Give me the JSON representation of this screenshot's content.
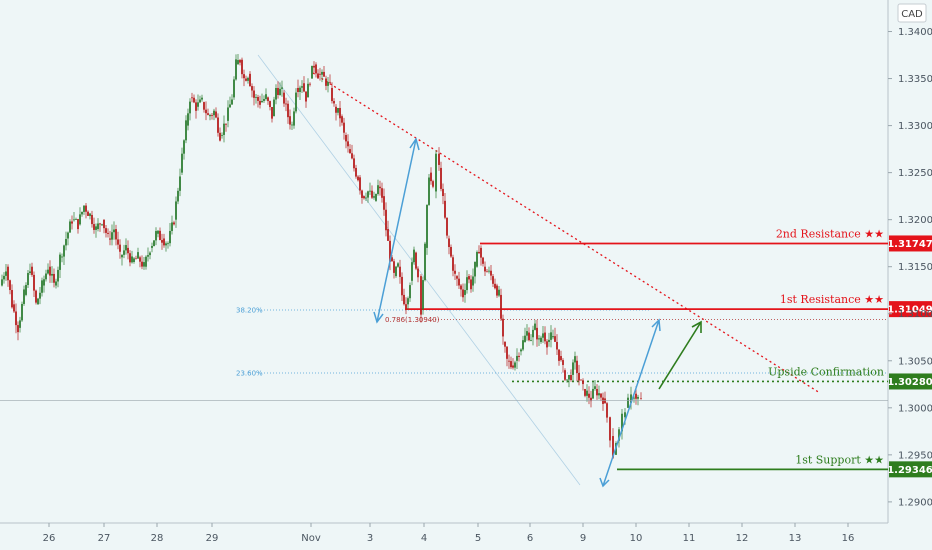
{
  "currency_label": "CAD",
  "colors": {
    "up": "#2e7d32",
    "down": "#b71c1c",
    "resistance": "#e4131a",
    "support": "#2e7d1e",
    "blue": "#4b9fd6"
  },
  "chart_data": {
    "type": "candlestick",
    "symbol_currency": "CAD",
    "x_ticks": [
      "26",
      "27",
      "28",
      "29",
      "Nov",
      "3",
      "4",
      "5",
      "6",
      "9",
      "10",
      "11",
      "12",
      "13",
      "16"
    ],
    "y_ticks": [
      "1.34000",
      "1.33500",
      "1.33000",
      "1.32500",
      "1.32000",
      "1.31500",
      "1.31000",
      "1.30500",
      "1.30000",
      "1.29500",
      "1.29000"
    ],
    "ylim": [
      1.2885,
      1.3425
    ],
    "close_path": [
      [
        0,
        1.313
      ],
      [
        6,
        1.315
      ],
      [
        12,
        1.311
      ],
      [
        18,
        1.3085
      ],
      [
        24,
        1.312
      ],
      [
        30,
        1.315
      ],
      [
        36,
        1.311
      ],
      [
        42,
        1.313
      ],
      [
        48,
        1.315
      ],
      [
        54,
        1.313
      ],
      [
        60,
        1.316
      ],
      [
        66,
        1.318
      ],
      [
        72,
        1.32
      ],
      [
        78,
        1.3195
      ],
      [
        84,
        1.3215
      ],
      [
        90,
        1.3205
      ],
      [
        96,
        1.319
      ],
      [
        102,
        1.32
      ],
      [
        108,
        1.318
      ],
      [
        114,
        1.319
      ],
      [
        120,
        1.316
      ],
      [
        126,
        1.317
      ],
      [
        132,
        1.3155
      ],
      [
        138,
        1.316
      ],
      [
        144,
        1.315
      ],
      [
        150,
        1.317
      ],
      [
        156,
        1.3185
      ],
      [
        162,
        1.318
      ],
      [
        168,
        1.3175
      ],
      [
        174,
        1.32
      ],
      [
        180,
        1.325
      ],
      [
        186,
        1.33
      ],
      [
        190,
        1.333
      ],
      [
        196,
        1.332
      ],
      [
        202,
        1.3325
      ],
      [
        208,
        1.331
      ],
      [
        214,
        1.3315
      ],
      [
        220,
        1.329
      ],
      [
        226,
        1.3305
      ],
      [
        232,
        1.333
      ],
      [
        236,
        1.3365
      ],
      [
        240,
        1.337
      ],
      [
        244,
        1.335
      ],
      [
        248,
        1.3355
      ],
      [
        254,
        1.333
      ],
      [
        260,
        1.3325
      ],
      [
        266,
        1.333
      ],
      [
        272,
        1.331
      ],
      [
        276,
        1.334
      ],
      [
        282,
        1.3335
      ],
      [
        288,
        1.331
      ],
      [
        292,
        1.33
      ],
      [
        296,
        1.334
      ],
      [
        302,
        1.3345
      ],
      [
        306,
        1.333
      ],
      [
        310,
        1.335
      ],
      [
        314,
        1.3365
      ],
      [
        318,
        1.3355
      ],
      [
        324,
        1.335
      ],
      [
        330,
        1.334
      ],
      [
        334,
        1.332
      ],
      [
        340,
        1.331
      ],
      [
        344,
        1.329
      ],
      [
        348,
        1.3275
      ],
      [
        354,
        1.3255
      ],
      [
        358,
        1.3245
      ],
      [
        362,
        1.3225
      ],
      [
        368,
        1.323
      ],
      [
        374,
        1.322
      ],
      [
        378,
        1.3235
      ],
      [
        382,
        1.3225
      ],
      [
        386,
        1.319
      ],
      [
        390,
        1.316
      ],
      [
        394,
        1.314
      ],
      [
        398,
        1.315
      ],
      [
        402,
        1.312
      ],
      [
        406,
        1.311
      ],
      [
        410,
        1.3135
      ],
      [
        414,
        1.3165
      ],
      [
        418,
        1.314
      ],
      [
        421,
        1.3105
      ],
      [
        425,
        1.317
      ],
      [
        429,
        1.325
      ],
      [
        433,
        1.323
      ],
      [
        436,
        1.327
      ],
      [
        439,
        1.3255
      ],
      [
        443,
        1.322
      ],
      [
        447,
        1.318
      ],
      [
        451,
        1.316
      ],
      [
        455,
        1.314
      ],
      [
        459,
        1.313
      ],
      [
        463,
        1.312
      ],
      [
        467,
        1.314
      ],
      [
        471,
        1.313
      ],
      [
        475,
        1.315
      ],
      [
        479,
        1.317
      ],
      [
        483,
        1.315
      ],
      [
        487,
        1.3145
      ],
      [
        491,
        1.314
      ],
      [
        495,
        1.313
      ],
      [
        499,
        1.312
      ],
      [
        503,
        1.307
      ],
      [
        507,
        1.305
      ],
      [
        511,
        1.3045
      ],
      [
        515,
        1.305
      ],
      [
        519,
        1.306
      ],
      [
        523,
        1.307
      ],
      [
        527,
        1.308
      ],
      [
        531,
        1.3075
      ],
      [
        535,
        1.3085
      ],
      [
        539,
        1.307
      ],
      [
        543,
        1.308
      ],
      [
        547,
        1.307
      ],
      [
        551,
        1.3075
      ],
      [
        555,
        1.307
      ],
      [
        559,
        1.3055
      ],
      [
        563,
        1.304
      ],
      [
        567,
        1.303
      ],
      [
        571,
        1.3035
      ],
      [
        575,
        1.305
      ],
      [
        579,
        1.303
      ],
      [
        583,
        1.302
      ],
      [
        587,
        1.3015
      ],
      [
        591,
        1.301
      ],
      [
        595,
        1.302
      ],
      [
        599,
        1.3015
      ],
      [
        603,
        1.301
      ],
      [
        607,
        1.299
      ],
      [
        610,
        1.297
      ],
      [
        613,
        1.295
      ],
      [
        616,
        1.2965
      ],
      [
        619,
        1.2975
      ],
      [
        622,
        1.299
      ],
      [
        625,
        1.3
      ],
      [
        628,
        1.3005
      ],
      [
        631,
        1.301
      ],
      [
        634,
        1.3015
      ],
      [
        638,
        1.301
      ],
      [
        641,
        1.3008
      ]
    ],
    "levels": [
      {
        "label": "2nd Resistance ★★",
        "tag": "1.31747",
        "value": 1.31747,
        "kind": "resistance"
      },
      {
        "label": "1st Resistance ★★",
        "tag": "1.31049",
        "value": 1.31049,
        "kind": "resistance"
      },
      {
        "label": "Upside Confirmation",
        "tag": "1.30280",
        "value": 1.3028,
        "kind": "support"
      },
      {
        "label": "1st Support ★★",
        "tag": "1.29346",
        "value": 1.29346,
        "kind": "support"
      }
    ],
    "fib_labels": [
      {
        "label": "38.20%",
        "value": 1.3104
      },
      {
        "label": "23.60%",
        "value": 1.3037
      },
      {
        "label": "0.786(1.30940)",
        "value": 1.3094
      }
    ],
    "current_price": 1.3008
  }
}
